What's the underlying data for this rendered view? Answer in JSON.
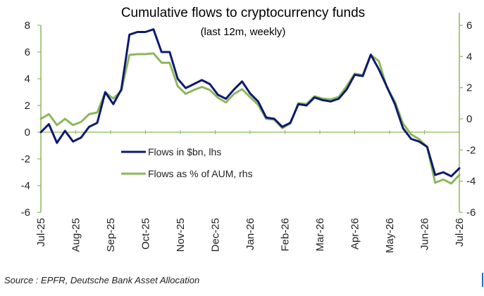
{
  "chart_data": {
    "type": "line",
    "title": "Cumulative flows to cryptocurrency funds",
    "subtitle": "(last 12m, weekly)",
    "x_tick_labels": [
      "Jul-25",
      "Aug-25",
      "Sep-25",
      "Oct-25",
      "Nov-25",
      "Dec-25",
      "Jan-26",
      "Feb-26",
      "Mar-26",
      "Apr-26",
      "May-26",
      "Jun-26",
      "Jul-26"
    ],
    "y_left": {
      "min": -6,
      "max": 8,
      "ticks": [
        -6,
        -4,
        -2,
        0,
        2,
        4,
        6,
        8
      ]
    },
    "y_right": {
      "min": -6,
      "max": 6,
      "ticks": [
        -6,
        -4,
        -2,
        0,
        2,
        4,
        6
      ]
    },
    "grid": false,
    "legend_position": "center-left",
    "series": [
      {
        "name": "Flows in $bn, lhs",
        "axis": "left",
        "color": "#0b1a6e",
        "values": [
          0.0,
          0.6,
          -0.8,
          0.1,
          -0.7,
          -0.4,
          0.4,
          0.7,
          3.0,
          2.1,
          3.2,
          7.3,
          7.5,
          7.5,
          7.7,
          6.0,
          6.0,
          4.0,
          3.3,
          3.6,
          3.9,
          3.6,
          2.8,
          2.5,
          3.2,
          3.8,
          2.9,
          2.3,
          1.1,
          1.0,
          0.4,
          0.7,
          2.1,
          2.0,
          2.6,
          2.4,
          2.3,
          2.5,
          3.2,
          4.3,
          4.2,
          5.8,
          4.7,
          3.4,
          2.1,
          0.3,
          -0.5,
          -0.7,
          -1.1,
          -3.2,
          -3.0,
          -3.3,
          -2.7
        ]
      },
      {
        "name": "Flows as % of AUM, rhs",
        "axis": "right",
        "color": "#8db75b",
        "values": [
          0.0,
          0.3,
          -0.4,
          0.0,
          -0.4,
          -0.2,
          0.3,
          0.4,
          1.7,
          1.3,
          1.8,
          4.1,
          4.15,
          4.15,
          4.2,
          3.6,
          3.6,
          2.1,
          1.6,
          1.85,
          2.05,
          1.85,
          1.35,
          1.05,
          1.6,
          1.9,
          1.4,
          0.9,
          0.0,
          -0.05,
          -0.6,
          -0.3,
          1.0,
          0.95,
          1.45,
          1.3,
          1.25,
          1.4,
          2.1,
          2.9,
          2.8,
          4.1,
          3.7,
          2.0,
          1.1,
          -0.3,
          -1.0,
          -1.3,
          -1.8,
          -4.1,
          -3.9,
          -4.15,
          -3.6
        ]
      }
    ]
  },
  "source": "Source : EPFR, Deutsche Bank Asset Allocation"
}
